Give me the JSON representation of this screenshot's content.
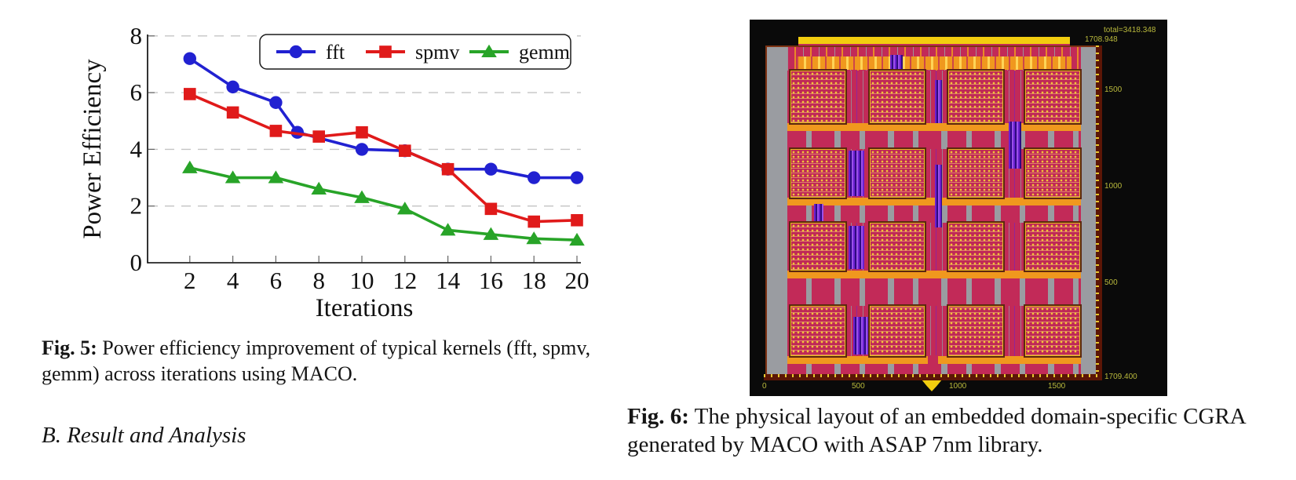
{
  "figure5": {
    "caption": {
      "bold": "Fig. 5:",
      "line1_rest": "Power efficiency improvement of typical kernels (fft, spmv,",
      "line2": "gemm) across iterations using MACO."
    }
  },
  "section_heading": "B. Result and Analysis",
  "chart_data": {
    "type": "line",
    "title": "",
    "xlabel": "Iterations",
    "ylabel": "Power Efficiency",
    "xlim": [
      0,
      20.5
    ],
    "ylim": [
      0,
      8
    ],
    "x_ticks": [
      2,
      4,
      6,
      8,
      10,
      12,
      14,
      16,
      18,
      20
    ],
    "y_ticks": [
      0,
      2,
      4,
      6,
      8
    ],
    "grid": "horizontal-dashed",
    "legend_position": "top-inside",
    "series": [
      {
        "name": "fft",
        "color": "#2121d1",
        "marker": "circle",
        "x": [
          2,
          4,
          6,
          7,
          10,
          12,
          14,
          16,
          18,
          20
        ],
        "y": [
          7.2,
          6.2,
          5.65,
          4.6,
          4.0,
          3.95,
          3.3,
          3.3,
          3.0,
          3.0
        ]
      },
      {
        "name": "spmv",
        "color": "#e01a1a",
        "marker": "square",
        "x": [
          2,
          4,
          6,
          8,
          10,
          12,
          14,
          16,
          18,
          20
        ],
        "y": [
          5.95,
          5.3,
          4.65,
          4.45,
          4.6,
          3.95,
          3.3,
          1.9,
          1.45,
          1.5
        ]
      },
      {
        "name": "gemm",
        "color": "#28a428",
        "marker": "triangle",
        "x": [
          2,
          4,
          6,
          8,
          10,
          12,
          14,
          16,
          18,
          20
        ],
        "y": [
          3.35,
          3.0,
          3.0,
          2.6,
          2.3,
          1.9,
          1.15,
          1.0,
          0.85,
          0.8
        ]
      }
    ]
  },
  "figure6": {
    "caption": {
      "bold": "Fig. 6:",
      "line1_rest": "The physical layout of an embedded domain-specific CGRA",
      "line2": "generated by MACO with ASAP 7nm library."
    },
    "labels": {
      "total": "total=3418.348",
      "top_right": "1708.948",
      "bottom_right": "1709.400",
      "right_ticks": [
        "1500",
        "1000",
        "500"
      ],
      "bottom_ticks": [
        "0",
        "500",
        "1000",
        "1500"
      ]
    },
    "palette": {
      "black": "#0a0a0a",
      "gray": "#9a9ca1",
      "crimson": "#c22a58",
      "orange": "#f0981e",
      "yellow": "#f2cd0f",
      "purple": "#6a1fd0",
      "brown": "#7c3212",
      "ruler": "#5c1606",
      "tickyellow": "#e8c82e",
      "labeltext": "#b9b93c"
    }
  }
}
